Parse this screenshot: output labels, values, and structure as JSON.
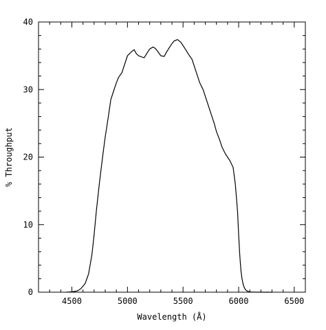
{
  "chart_data": {
    "type": "line",
    "title": "",
    "xlabel": "Wavelength (Å)",
    "ylabel": "% Throughput",
    "xlim": [
      4200,
      6600
    ],
    "ylim": [
      0,
      40
    ],
    "grid": false,
    "x_ticks": [
      4500,
      5000,
      5500,
      6000,
      6500
    ],
    "x_tick_labels": [
      "4500",
      "5000",
      "5500",
      "6000",
      "6500"
    ],
    "y_ticks": [
      0,
      10,
      20,
      30,
      40
    ],
    "y_tick_labels": [
      "0",
      "10",
      "20",
      "30",
      "40"
    ],
    "series": [
      {
        "name": "",
        "color": "#000000",
        "x": [
          4450,
          4500,
          4550,
          4580,
          4620,
          4650,
          4680,
          4700,
          4720,
          4750,
          4780,
          4800,
          4830,
          4850,
          4880,
          4900,
          4920,
          4950,
          4980,
          5000,
          5030,
          5060,
          5080,
          5100,
          5150,
          5180,
          5200,
          5230,
          5250,
          5270,
          5300,
          5330,
          5350,
          5380,
          5400,
          5420,
          5450,
          5480,
          5500,
          5520,
          5550,
          5580,
          5600,
          5630,
          5650,
          5680,
          5700,
          5720,
          5750,
          5780,
          5800,
          5830,
          5850,
          5880,
          5900,
          5920,
          5950,
          5970,
          5990,
          6000,
          6010,
          6020,
          6030,
          6040,
          6050,
          6060,
          6070,
          6080,
          6090,
          6100,
          6120,
          6150,
          6180,
          6200,
          6250,
          6300
        ],
        "y": [
          0,
          0.05,
          0.2,
          0.5,
          1.3,
          2.7,
          5.5,
          8.5,
          12,
          16.5,
          20.5,
          23,
          26.2,
          28.5,
          30,
          31,
          31.8,
          32.5,
          34,
          35,
          35.5,
          35.9,
          35.3,
          35,
          34.7,
          35.5,
          36,
          36.3,
          36.1,
          35.7,
          35,
          34.9,
          35.5,
          36.3,
          36.8,
          37.2,
          37.4,
          37,
          36.5,
          36,
          35.2,
          34.5,
          33.5,
          32,
          31,
          30,
          29,
          28,
          26.5,
          25,
          23.8,
          22.5,
          21.5,
          20.5,
          20,
          19.5,
          18.5,
          16,
          12,
          8.5,
          5.5,
          3.3,
          2,
          1.2,
          0.7,
          0.4,
          0.25,
          0.15,
          0.08,
          0.05,
          0.02,
          0.01,
          0,
          0,
          0,
          0
        ]
      }
    ]
  }
}
